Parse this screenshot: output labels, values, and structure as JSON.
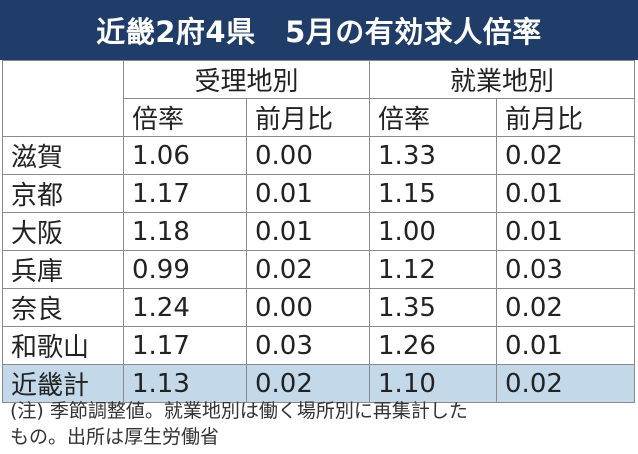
{
  "header": {
    "title": "近畿2府4県　5月の有効求人倍率"
  },
  "table": {
    "groups": [
      "受理地別",
      "就業地別"
    ],
    "sub_headers": [
      "倍率",
      "前月比",
      "倍率",
      "前月比"
    ],
    "rows": [
      {
        "name": "滋賀",
        "cells": [
          "1.06",
          "0.00",
          "1.33",
          "0.02"
        ]
      },
      {
        "name": "京都",
        "cells": [
          "1.17",
          "0.01",
          "1.15",
          "0.01"
        ]
      },
      {
        "name": "大阪",
        "cells": [
          "1.18",
          "0.01",
          "1.00",
          "0.01"
        ]
      },
      {
        "name": "兵庫",
        "cells": [
          "0.99",
          "0.02",
          "1.12",
          "0.03"
        ]
      },
      {
        "name": "奈良",
        "cells": [
          "1.24",
          "0.00",
          "1.35",
          "0.02"
        ]
      },
      {
        "name": "和歌山",
        "cells": [
          "1.17",
          "0.03",
          "1.26",
          "0.01"
        ]
      },
      {
        "name": "近畿計",
        "cells": [
          "1.13",
          "0.02",
          "1.10",
          "0.02"
        ]
      }
    ]
  },
  "footnote": {
    "line1": "(注) 季節調整値。就業地別は働く場所別に再集計した",
    "line2": "もの。出所は厚生労働省"
  },
  "colors": {
    "title_bg": "#203d6a",
    "total_row_bg": "#c3d9e9"
  }
}
